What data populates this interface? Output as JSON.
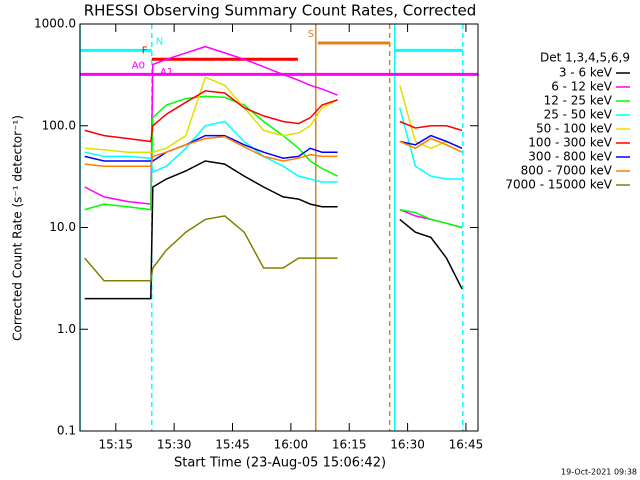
{
  "chart_data": {
    "type": "line",
    "title": "RHESSI Observing Summary Count Rates, Corrected",
    "xlabel": "Start Time (23-Aug-05 15:06:42)",
    "ylabel": "Corrected Count Rate (s⁻¹ detector⁻¹)",
    "legend_title": "Det 1,3,4,5,6,9",
    "timestamp": "19-Oct-2021 09:38",
    "log_y": true,
    "xlim": [
      5.8,
      108.1
    ],
    "xticks": [
      {
        "value": 15,
        "label": "15:15"
      },
      {
        "value": 30,
        "label": "15:30"
      },
      {
        "value": 45,
        "label": "15:45"
      },
      {
        "value": 60,
        "label": "16:00"
      },
      {
        "value": 75,
        "label": "16:15"
      },
      {
        "value": 90,
        "label": "16:30"
      },
      {
        "value": 105,
        "label": "16:45"
      }
    ],
    "ylim": [
      0.1,
      1000
    ],
    "yticks": [
      {
        "value": 1000,
        "label": "1000.0"
      },
      {
        "value": 100,
        "label": "100.0"
      },
      {
        "value": 10,
        "label": "10.0"
      },
      {
        "value": 1,
        "label": "1.0"
      },
      0.1
    ],
    "x": [
      7,
      12,
      18,
      24,
      24.5,
      28,
      33,
      38,
      43,
      48,
      53,
      58,
      62,
      65,
      68,
      72,
      80,
      88,
      92,
      96,
      100,
      104
    ],
    "series": [
      {
        "name": "3 - 6 keV",
        "color": "#000000",
        "values": [
          2,
          2,
          2,
          2,
          25,
          30,
          36,
          45,
          42,
          32,
          25,
          20,
          19,
          17,
          16,
          16,
          null,
          12,
          9,
          8,
          5,
          2.5
        ]
      },
      {
        "name": "6 - 12 keV",
        "color": "#ff00ff",
        "values": [
          25,
          20,
          18,
          17,
          400,
          450,
          520,
          600,
          520,
          450,
          380,
          320,
          280,
          250,
          230,
          200,
          null,
          15,
          13,
          12,
          11,
          10
        ]
      },
      {
        "name": "12 - 25 keV",
        "color": "#00ff00",
        "values": [
          15,
          17,
          16,
          15,
          120,
          160,
          185,
          195,
          190,
          160,
          110,
          80,
          60,
          45,
          38,
          32,
          null,
          15,
          14,
          12,
          11,
          10
        ]
      },
      {
        "name": "25 - 50 keV",
        "color": "#00ffff",
        "values": [
          55,
          50,
          50,
          48,
          35,
          40,
          60,
          100,
          110,
          70,
          50,
          40,
          32,
          30,
          28,
          28,
          null,
          150,
          40,
          32,
          30,
          30
        ]
      },
      {
        "name": "50 - 100 keV",
        "color": "#e0e000",
        "values": [
          60,
          58,
          55,
          55,
          55,
          60,
          80,
          300,
          250,
          150,
          90,
          80,
          85,
          100,
          150,
          180,
          null,
          250,
          70,
          60,
          70,
          60
        ]
      },
      {
        "name": "100 - 300 keV",
        "color": "#ff0000",
        "values": [
          90,
          80,
          75,
          70,
          100,
          130,
          170,
          220,
          210,
          150,
          125,
          110,
          105,
          120,
          160,
          180,
          null,
          110,
          95,
          100,
          100,
          90
        ]
      },
      {
        "name": "300 - 800 keV",
        "color": "#0000ff",
        "values": [
          50,
          45,
          45,
          45,
          45,
          55,
          65,
          80,
          80,
          65,
          55,
          48,
          50,
          60,
          55,
          55,
          null,
          70,
          65,
          80,
          70,
          60
        ]
      },
      {
        "name": "800 - 7000 keV",
        "color": "#ff8000",
        "values": [
          42,
          40,
          40,
          40,
          50,
          55,
          65,
          75,
          78,
          62,
          50,
          45,
          48,
          52,
          50,
          50,
          null,
          70,
          60,
          75,
          65,
          55
        ]
      },
      {
        "name": "7000 - 15000 keV",
        "color": "#808000",
        "values": [
          5,
          3,
          3,
          3,
          4,
          6,
          9,
          12,
          13,
          9,
          4,
          4,
          5,
          5,
          5,
          5,
          null,
          null,
          null,
          null,
          null,
          null
        ]
      }
    ],
    "flags": [
      {
        "label": "N",
        "color": "#00ffff",
        "y": 550,
        "segments": [
          [
            5.8,
            24.25
          ],
          [
            86.7,
            104.2
          ]
        ]
      },
      {
        "label": "F",
        "color": "#ff0000",
        "y": 450,
        "segments": [
          [
            24.25,
            61.8
          ]
        ]
      },
      {
        "label": "A0",
        "color": "#ff00ff",
        "y": 320,
        "segments": [
          [
            5.8,
            108.1
          ]
        ]
      },
      {
        "label": "S",
        "color": "#e08020",
        "y": 650,
        "segments": [
          [
            66.9,
            85.4
          ]
        ]
      }
    ],
    "flag_note": "A1",
    "vlines": [
      {
        "x": 5.8,
        "color": "#00ffff",
        "dashed": false
      },
      {
        "x": 24.25,
        "color": "#00ffff",
        "dashed": true
      },
      {
        "x": 86.7,
        "color": "#00ffff",
        "dashed": false
      },
      {
        "x": 104.2,
        "color": "#00ffff",
        "dashed": true
      },
      {
        "x": 66.4,
        "color": "#e08020",
        "dashed": false
      },
      {
        "x": 85.4,
        "color": "#e08020",
        "dashed": true
      }
    ]
  }
}
